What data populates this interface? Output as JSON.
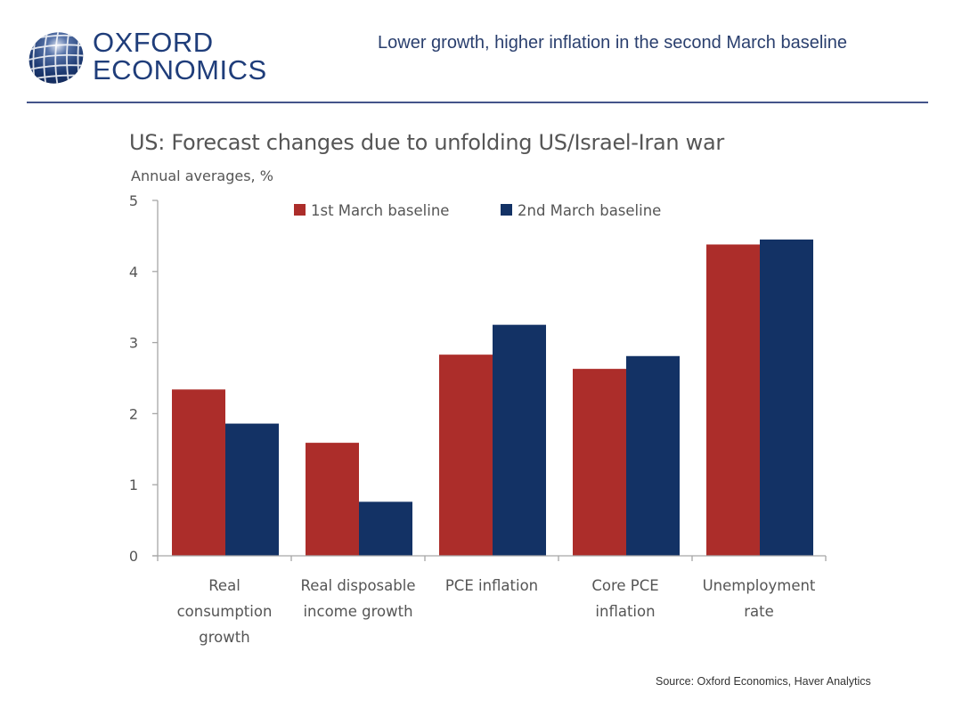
{
  "header": {
    "logo_line1": "OXFORD",
    "logo_line2": "ECONOMICS",
    "logo_icon": "globe-icon",
    "slide_title": "Lower growth, higher inflation in the second March baseline"
  },
  "footer": {
    "source": "Source: Oxford Economics, Haver Analytics"
  },
  "colors": {
    "brand": "#1f3d7a",
    "series1": "#ac2d2a",
    "series2": "#133265",
    "axis": "#a6a6a6",
    "text": "#555555"
  },
  "chart_data": {
    "type": "bar",
    "title": "US: Forecast changes due to unfolding US/Israel-Iran war",
    "subtitle": "Annual averages, %",
    "xlabel": "",
    "ylabel": "",
    "ylim": [
      0,
      5
    ],
    "yticks": [
      0,
      1,
      2,
      3,
      4,
      5
    ],
    "grid": false,
    "legend_position": "top-center",
    "categories": [
      [
        "Real",
        "consumption",
        "growth"
      ],
      [
        "Real disposable",
        "income growth"
      ],
      [
        "PCE inflation"
      ],
      [
        "Core PCE",
        "inflation"
      ],
      [
        "Unemployment",
        "rate"
      ]
    ],
    "series": [
      {
        "name": "1st March baseline",
        "color": "#ac2d2a",
        "values": [
          2.34,
          1.59,
          2.83,
          2.63,
          4.38
        ]
      },
      {
        "name": "2nd March baseline",
        "color": "#133265",
        "values": [
          1.86,
          0.76,
          3.25,
          2.81,
          4.45
        ]
      }
    ]
  }
}
